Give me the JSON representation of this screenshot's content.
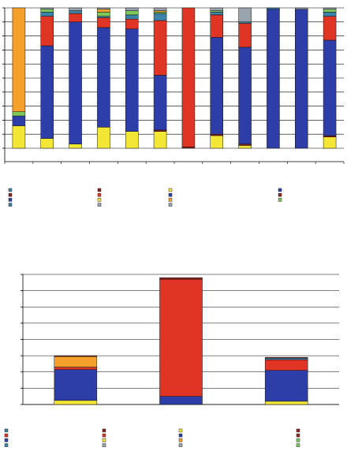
{
  "palette": {
    "blue": "#2e3ea8",
    "red": "#e03424",
    "yellow": "#f4e634",
    "orange": "#f5a02a",
    "green": "#7cc85a",
    "teal": "#3b83a8",
    "darkred": "#8a2020",
    "gray": "#9aa4ae"
  },
  "chart_data": [
    {
      "type": "bar",
      "stacked": "percent",
      "title": "",
      "xlabel": "",
      "ylabel": "",
      "categories": [
        "",
        "",
        "",
        "",
        "",
        "",
        "",
        "",
        "",
        "",
        "",
        ""
      ],
      "ylim": [
        0,
        100
      ],
      "grid": true,
      "legend": "bottom",
      "series": [
        {
          "color": "yellow",
          "values": [
            16,
            7,
            3,
            15,
            12,
            12,
            0,
            9,
            2,
            0,
            0,
            8
          ]
        },
        {
          "color": "darkred",
          "values": [
            0,
            0,
            0,
            0,
            0,
            1,
            1,
            1,
            1,
            0,
            0,
            1
          ]
        },
        {
          "color": "blue",
          "values": [
            7,
            66,
            87,
            71,
            73,
            39,
            0,
            69,
            69,
            99,
            99,
            68
          ]
        },
        {
          "color": "red",
          "values": [
            0,
            21,
            6,
            7,
            7,
            39,
            99,
            16,
            17,
            0,
            0,
            17
          ]
        },
        {
          "color": "teal",
          "values": [
            0,
            3,
            2,
            1,
            3,
            5,
            0,
            2,
            1,
            1,
            0,
            3
          ]
        },
        {
          "color": "green",
          "values": [
            3,
            2,
            0,
            3,
            3,
            1,
            0,
            1,
            0,
            0,
            0,
            2
          ]
        },
        {
          "color": "orange",
          "values": [
            74,
            0,
            0,
            2,
            0,
            1,
            0,
            0,
            0,
            0,
            0,
            0
          ]
        },
        {
          "color": "gray",
          "values": [
            0,
            1,
            2,
            1,
            2,
            2,
            0,
            2,
            10,
            0,
            1,
            1
          ]
        }
      ]
    },
    {
      "type": "bar",
      "stacked": "absolute",
      "title": "",
      "xlabel": "",
      "ylabel": "",
      "categories": [
        "",
        "",
        ""
      ],
      "ylim": [
        0,
        8
      ],
      "grid": true,
      "legend": "bottom",
      "series": [
        {
          "color": "yellow",
          "values": [
            0.25,
            0,
            0.2
          ]
        },
        {
          "color": "blue",
          "values": [
            1.9,
            0.5,
            1.9
          ]
        },
        {
          "color": "red",
          "values": [
            0.15,
            7.2,
            0.65
          ]
        },
        {
          "color": "teal",
          "values": [
            0,
            0,
            0.1
          ]
        },
        {
          "color": "orange",
          "values": [
            0.65,
            0,
            0
          ]
        },
        {
          "color": "darkred",
          "values": [
            0.05,
            0.1,
            0.05
          ]
        }
      ]
    }
  ],
  "legends": [
    {
      "columns": [
        [
          "teal",
          "darkred",
          "blue",
          "teal"
        ],
        [
          "darkred",
          "red",
          "yellow",
          "gray"
        ],
        [
          "yellow",
          "blue",
          "orange",
          "gray"
        ],
        [
          "blue",
          "darkred",
          "green"
        ]
      ]
    },
    {
      "columns": [
        [
          "teal",
          "red",
          "blue",
          "teal"
        ],
        [
          "darkred",
          "red",
          "yellow",
          "gray"
        ],
        [
          "yellow",
          "blue",
          "orange",
          "gray"
        ],
        [
          "darkred",
          "darkred",
          "green",
          "green"
        ]
      ]
    }
  ]
}
